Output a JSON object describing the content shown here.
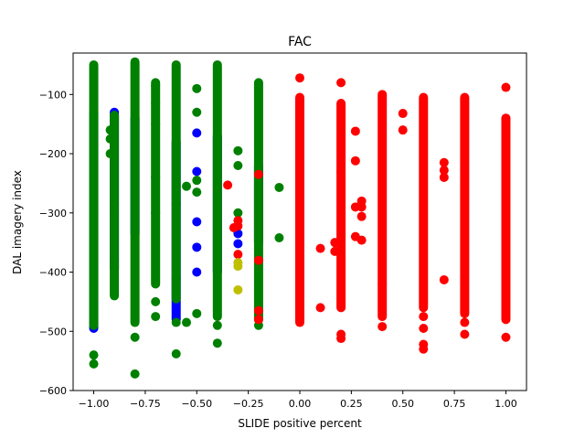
{
  "chart_data": {
    "type": "scatter",
    "title": "FAC",
    "xlabel": "SLIDE positive percent",
    "ylabel": "DAL imagery index",
    "xlim": [
      -1.1,
      1.1
    ],
    "ylim": [
      -600,
      -30
    ],
    "xticks": [
      -1.0,
      -0.75,
      -0.5,
      -0.25,
      0.0,
      0.25,
      0.5,
      0.75,
      1.0
    ],
    "xtick_labels": [
      "−1.00",
      "−0.75",
      "−0.50",
      "−0.25",
      "0.00",
      "0.25",
      "0.50",
      "0.75",
      "1.00"
    ],
    "yticks": [
      -600,
      -500,
      -400,
      -300,
      -200,
      -100
    ],
    "ytick_labels": [
      "−600",
      "−500",
      "−400",
      "−300",
      "−200",
      "−100"
    ],
    "grid": false,
    "legend": "none",
    "colors": {
      "green": "#008000",
      "blue": "#0000ff",
      "red": "#ff0000",
      "olive": "#bfbf00"
    },
    "series": [
      {
        "color": "blue",
        "strips": [
          [
            -1.0,
            -495,
            -130
          ],
          [
            -0.9,
            -395,
            -130
          ],
          [
            -0.8,
            -335,
            -140
          ],
          [
            -0.6,
            -480,
            -180
          ],
          [
            -0.4,
            -400,
            -170
          ],
          [
            -0.2,
            -350,
            -220
          ]
        ],
        "points": [
          [
            -1.0,
            -340
          ],
          [
            -1.0,
            -300
          ],
          [
            -0.9,
            -285
          ],
          [
            -0.9,
            -300
          ],
          [
            -0.9,
            -380
          ],
          [
            -0.8,
            -175
          ],
          [
            -0.7,
            -240
          ],
          [
            -0.7,
            -300
          ],
          [
            -0.6,
            -285
          ],
          [
            -0.6,
            -410
          ],
          [
            -0.5,
            -165
          ],
          [
            -0.5,
            -230
          ],
          [
            -0.5,
            -315
          ],
          [
            -0.5,
            -358
          ],
          [
            -0.5,
            -400
          ],
          [
            -0.4,
            -180
          ],
          [
            -0.3,
            -335
          ],
          [
            -0.3,
            -352
          ],
          [
            -0.2,
            -270
          ]
        ]
      },
      {
        "color": "green",
        "strips": [
          [
            -1.0,
            -490,
            -50
          ],
          [
            -0.9,
            -440,
            -135
          ],
          [
            -0.8,
            -485,
            -45
          ],
          [
            -0.7,
            -420,
            -80
          ],
          [
            -0.6,
            -445,
            -50
          ],
          [
            -0.4,
            -475,
            -50
          ],
          [
            -0.2,
            -480,
            -80
          ]
        ],
        "points": [
          [
            -1.0,
            -555
          ],
          [
            -1.0,
            -540
          ],
          [
            -0.92,
            -160
          ],
          [
            -0.92,
            -175
          ],
          [
            -0.92,
            -200
          ],
          [
            -0.8,
            -510
          ],
          [
            -0.8,
            -572
          ],
          [
            -0.7,
            -450
          ],
          [
            -0.7,
            -475
          ],
          [
            -0.7,
            -150
          ],
          [
            -0.7,
            -115
          ],
          [
            -0.7,
            -85
          ],
          [
            -0.6,
            -485
          ],
          [
            -0.6,
            -538
          ],
          [
            -0.55,
            -255
          ],
          [
            -0.55,
            -485
          ],
          [
            -0.5,
            -90
          ],
          [
            -0.5,
            -130
          ],
          [
            -0.5,
            -245
          ],
          [
            -0.5,
            -265
          ],
          [
            -0.5,
            -470
          ],
          [
            -0.4,
            -520
          ],
          [
            -0.4,
            -490
          ],
          [
            -0.3,
            -195
          ],
          [
            -0.3,
            -220
          ],
          [
            -0.3,
            -300
          ],
          [
            -0.2,
            -490
          ],
          [
            -0.2,
            -465
          ],
          [
            -0.1,
            -257
          ],
          [
            -0.1,
            -342
          ]
        ]
      },
      {
        "color": "red",
        "strips": [
          [
            0.0,
            -485,
            -105
          ],
          [
            0.2,
            -460,
            -115
          ],
          [
            0.4,
            -475,
            -100
          ],
          [
            0.6,
            -460,
            -105
          ],
          [
            0.8,
            -470,
            -105
          ],
          [
            1.0,
            -480,
            -140
          ]
        ],
        "points": [
          [
            -0.35,
            -253
          ],
          [
            -0.3,
            -313
          ],
          [
            -0.3,
            -322
          ],
          [
            -0.3,
            -370
          ],
          [
            -0.32,
            -325
          ],
          [
            -0.2,
            -380
          ],
          [
            -0.2,
            -465
          ],
          [
            -0.2,
            -480
          ],
          [
            -0.2,
            -235
          ],
          [
            0.0,
            -72
          ],
          [
            0.1,
            -360
          ],
          [
            0.1,
            -460
          ],
          [
            0.17,
            -350
          ],
          [
            0.17,
            -365
          ],
          [
            0.2,
            -505
          ],
          [
            0.2,
            -512
          ],
          [
            0.2,
            -80
          ],
          [
            0.2,
            -230
          ],
          [
            0.27,
            -162
          ],
          [
            0.27,
            -212
          ],
          [
            0.27,
            -290
          ],
          [
            0.3,
            -280
          ],
          [
            0.3,
            -290
          ],
          [
            0.3,
            -306
          ],
          [
            0.3,
            -346
          ],
          [
            0.27,
            -340
          ],
          [
            0.4,
            -492
          ],
          [
            0.4,
            -420
          ],
          [
            0.5,
            -132
          ],
          [
            0.5,
            -160
          ],
          [
            0.6,
            -475
          ],
          [
            0.6,
            -495
          ],
          [
            0.6,
            -522
          ],
          [
            0.6,
            -530
          ],
          [
            0.7,
            -215
          ],
          [
            0.7,
            -228
          ],
          [
            0.7,
            -240
          ],
          [
            0.7,
            -413
          ],
          [
            0.8,
            -485
          ],
          [
            0.8,
            -505
          ],
          [
            1.0,
            -88
          ],
          [
            1.0,
            -510
          ]
        ]
      },
      {
        "color": "olive",
        "strips": [],
        "points": [
          [
            -0.3,
            -384
          ],
          [
            -0.3,
            -390
          ],
          [
            -0.3,
            -430
          ]
        ]
      }
    ]
  }
}
